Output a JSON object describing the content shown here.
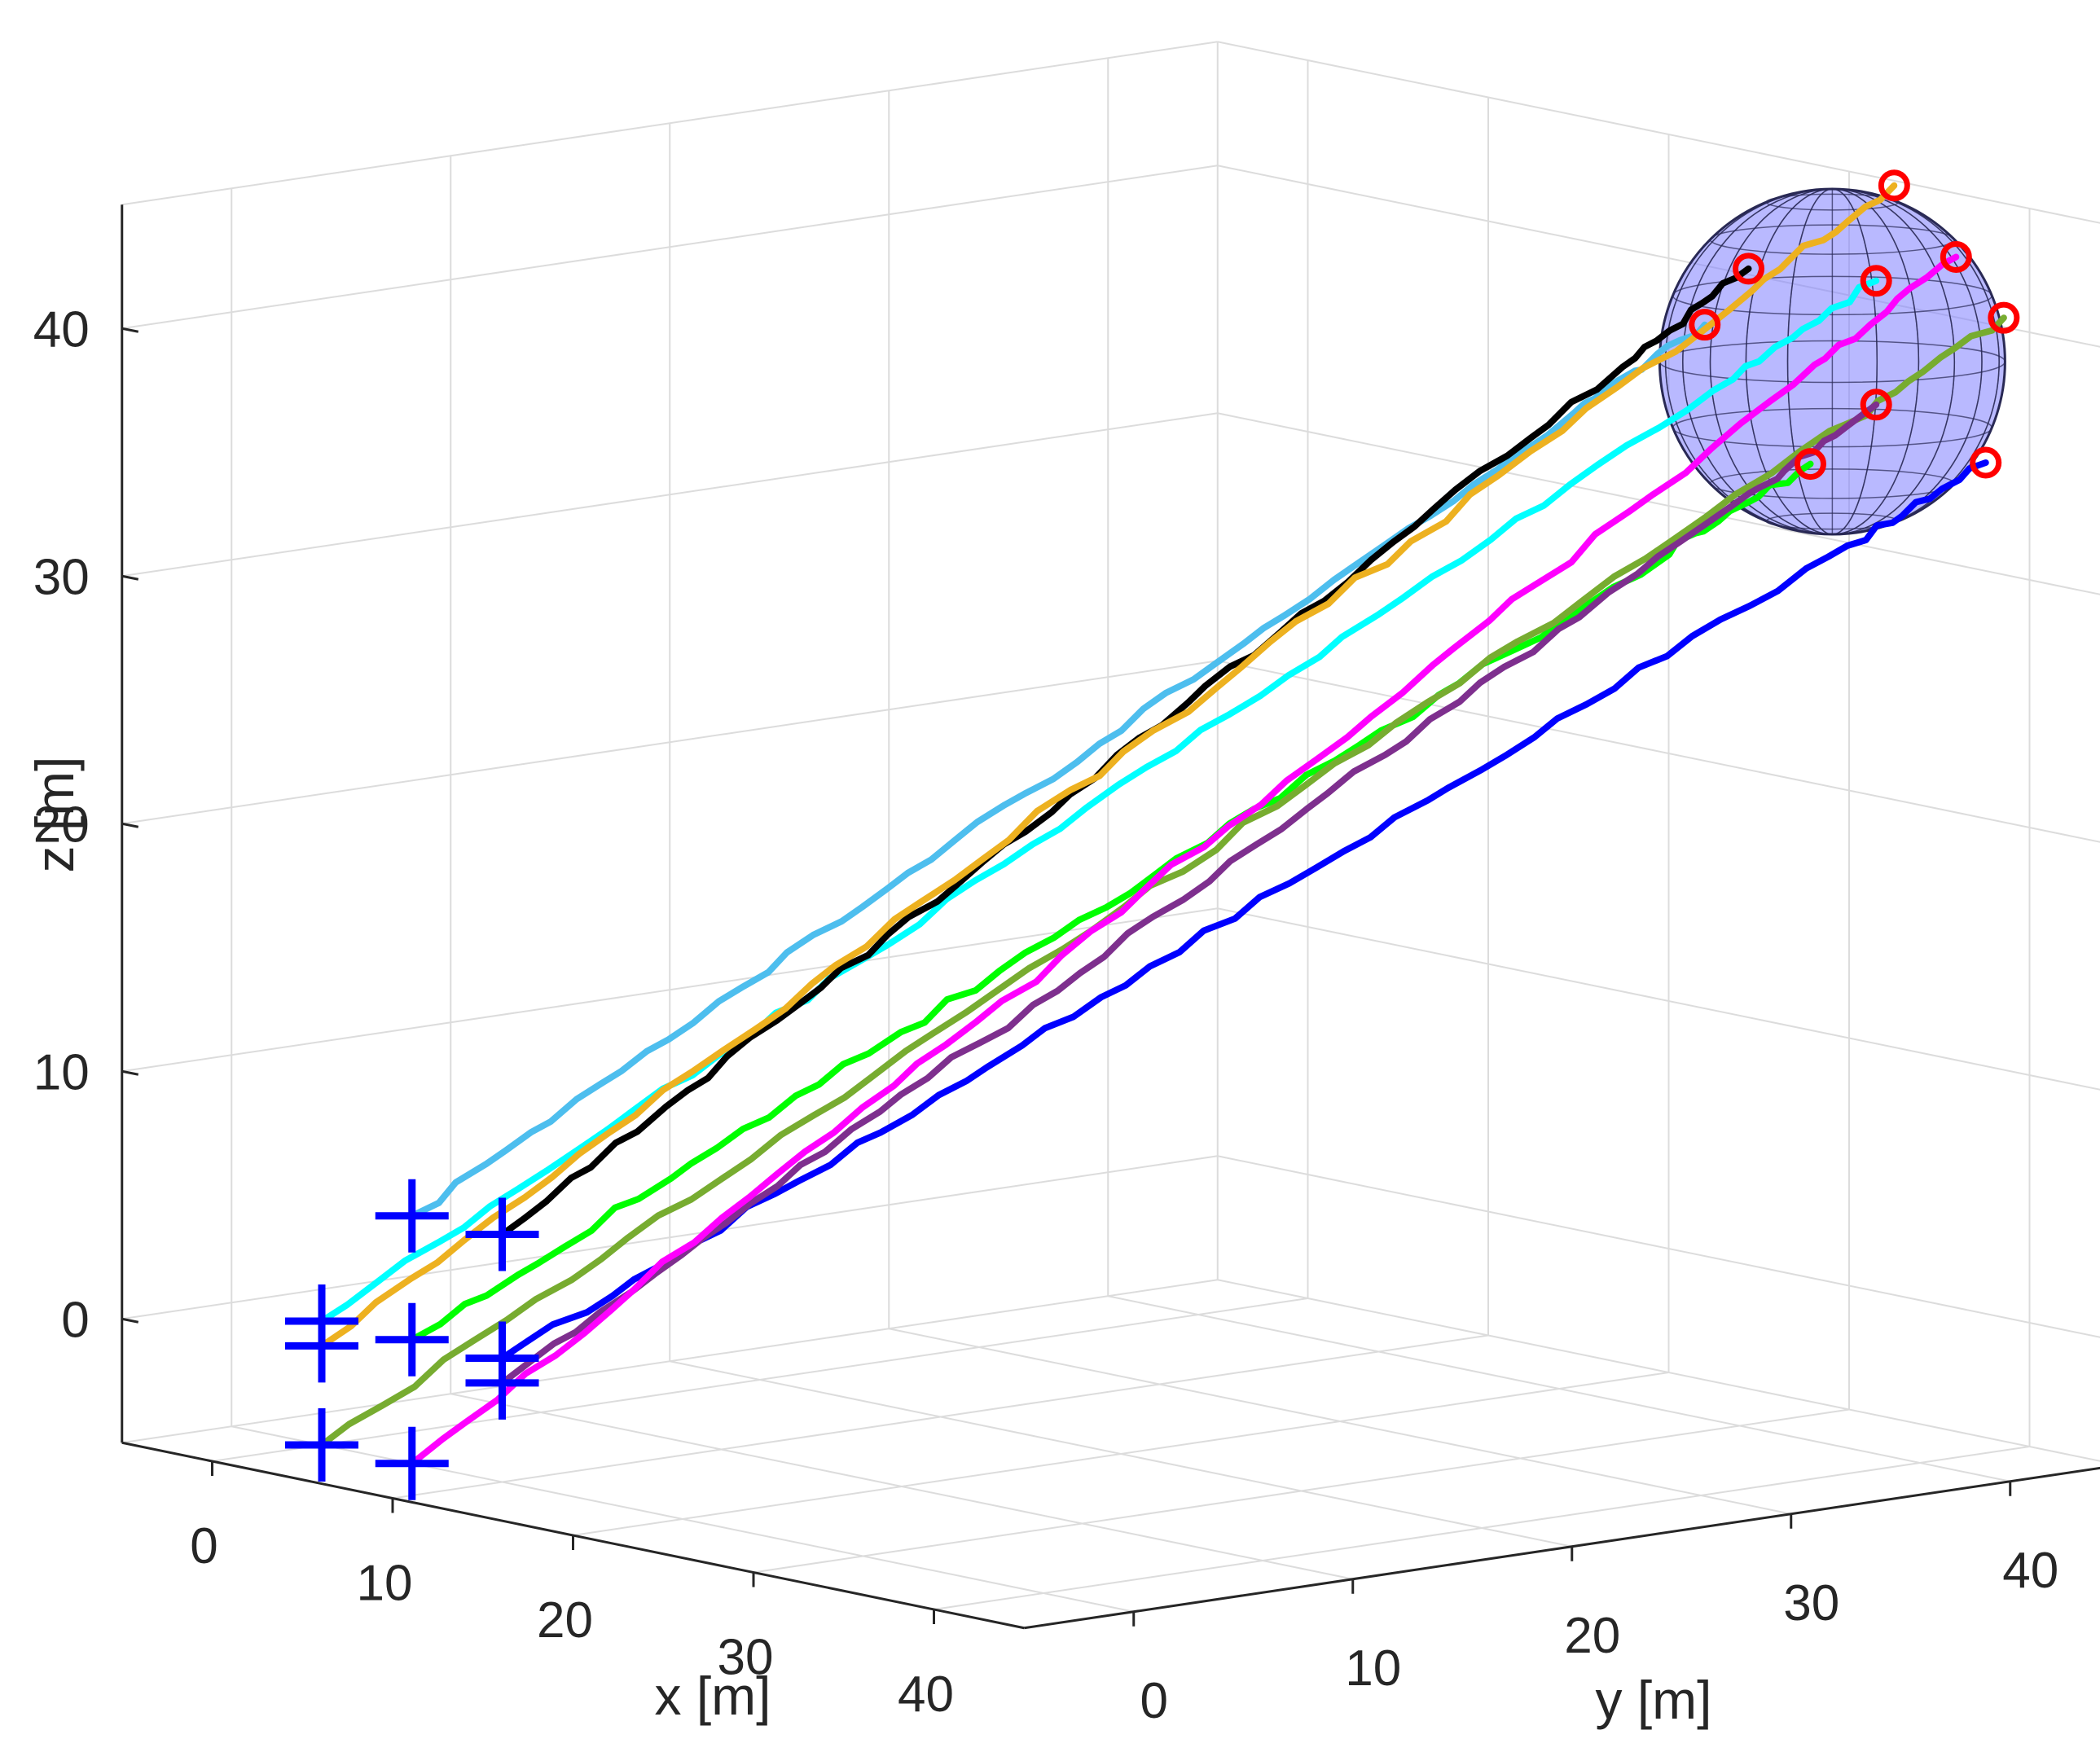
{
  "chart_data": {
    "type": "line3d",
    "title": "",
    "xlabel": "x [m]",
    "ylabel": "y [m]",
    "zlabel": "z [m]",
    "xlim": [
      -5,
      45
    ],
    "ylim": [
      -5,
      45
    ],
    "zlim": [
      -5,
      45
    ],
    "xticks": [
      "0",
      "10",
      "20",
      "30",
      "40"
    ],
    "yticks": [
      "0",
      "10",
      "20",
      "30",
      "40"
    ],
    "zticks": [
      "0",
      "10",
      "20",
      "30",
      "40"
    ],
    "grid": true,
    "start_marker": "blue-plus",
    "end_marker": "red-circle",
    "target_sphere": {
      "center": [
        40,
        36,
        40
      ],
      "radius": 6,
      "color": "#8080ff"
    },
    "series": [
      {
        "color": "#4DBEEE",
        "start": [
          5,
          0,
          5
        ],
        "end": [
          39,
          31,
          42
        ]
      },
      {
        "color": "#00FFFF",
        "start": [
          0,
          0,
          0
        ],
        "end": [
          40,
          38,
          43
        ]
      },
      {
        "color": "#000000",
        "start": [
          10,
          0,
          5
        ],
        "end": [
          39,
          33,
          44
        ]
      },
      {
        "color": "#EDB120",
        "start": [
          0,
          0,
          -1
        ],
        "end": [
          41,
          38,
          47
        ]
      },
      {
        "color": "#00FF00",
        "start": [
          5,
          0,
          0
        ],
        "end": [
          40,
          35,
          36
        ]
      },
      {
        "color": "#77AC30",
        "start": [
          0,
          0,
          -5
        ],
        "end": [
          41,
          43,
          41
        ]
      },
      {
        "color": "#0000FF",
        "start": [
          10,
          0,
          0
        ],
        "end": [
          40,
          43,
          35
        ]
      },
      {
        "color": "#7E2F8E",
        "start": [
          10,
          0,
          -1
        ],
        "end": [
          40,
          38,
          38
        ]
      },
      {
        "color": "#FF00FF",
        "start": [
          5,
          0,
          -5
        ],
        "end": [
          42,
          40,
          44
        ]
      }
    ]
  }
}
